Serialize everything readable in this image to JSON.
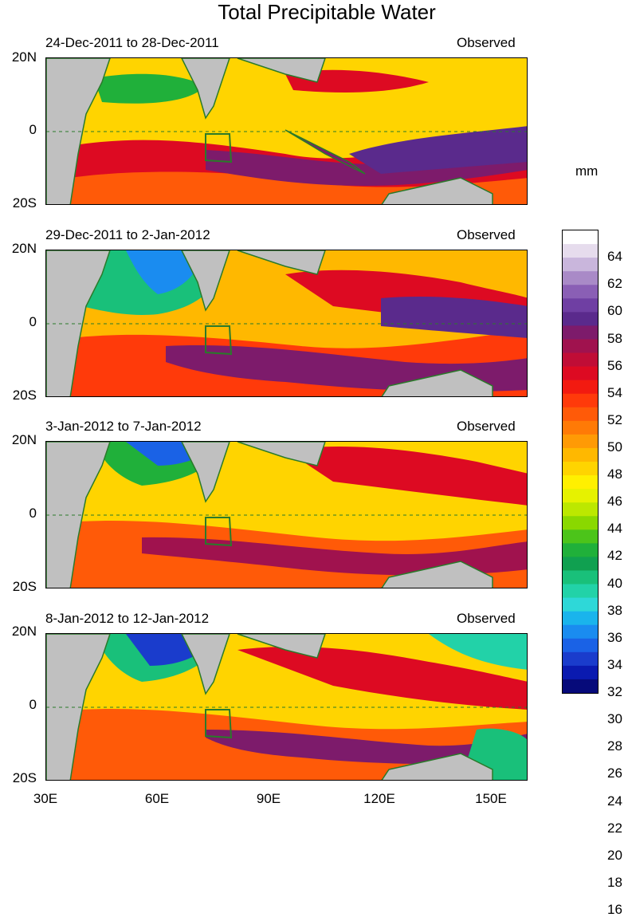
{
  "title": "Total Precipitable Water",
  "units": "mm",
  "panels": [
    {
      "date_range": "24-Dec-2011 to 28-Dec-2011",
      "type": "Observed"
    },
    {
      "date_range": "29-Dec-2011 to 2-Jan-2012",
      "type": "Observed"
    },
    {
      "date_range": "3-Jan-2012 to 7-Jan-2012",
      "type": "Observed"
    },
    {
      "date_range": "8-Jan-2012 to 12-Jan-2012",
      "type": "Observed"
    }
  ],
  "lat_labels": [
    "20N",
    "0",
    "20S"
  ],
  "lon_labels": [
    "30E",
    "60E",
    "90E",
    "120E",
    "150E"
  ],
  "colorbar": {
    "ticks": [
      "64",
      "62",
      "60",
      "58",
      "56",
      "54",
      "52",
      "50",
      "48",
      "46",
      "44",
      "42",
      "40",
      "38",
      "36",
      "34",
      "32",
      "30",
      "28",
      "26",
      "24",
      "22",
      "20",
      "18",
      "16"
    ],
    "colors": [
      "#ffffff",
      "#e6dced",
      "#c9b6dc",
      "#a98ac7",
      "#8a5fb5",
      "#6f3fa3",
      "#5a2a8c",
      "#7d1b6b",
      "#a0124e",
      "#c00d36",
      "#dd0a22",
      "#f21a10",
      "#ff3a0a",
      "#ff5a08",
      "#ff7a06",
      "#ff9a05",
      "#ffb800",
      "#ffd400",
      "#fff000",
      "#e6f200",
      "#bce800",
      "#8ad800",
      "#4cc41a",
      "#20b03a",
      "#10a050",
      "#19c07a",
      "#22d2a8",
      "#2ed8d8",
      "#1ab4ec",
      "#1a8cf0",
      "#1a62e6",
      "#1a3ccc",
      "#0a1ab0",
      "#060a7a"
    ]
  }
}
